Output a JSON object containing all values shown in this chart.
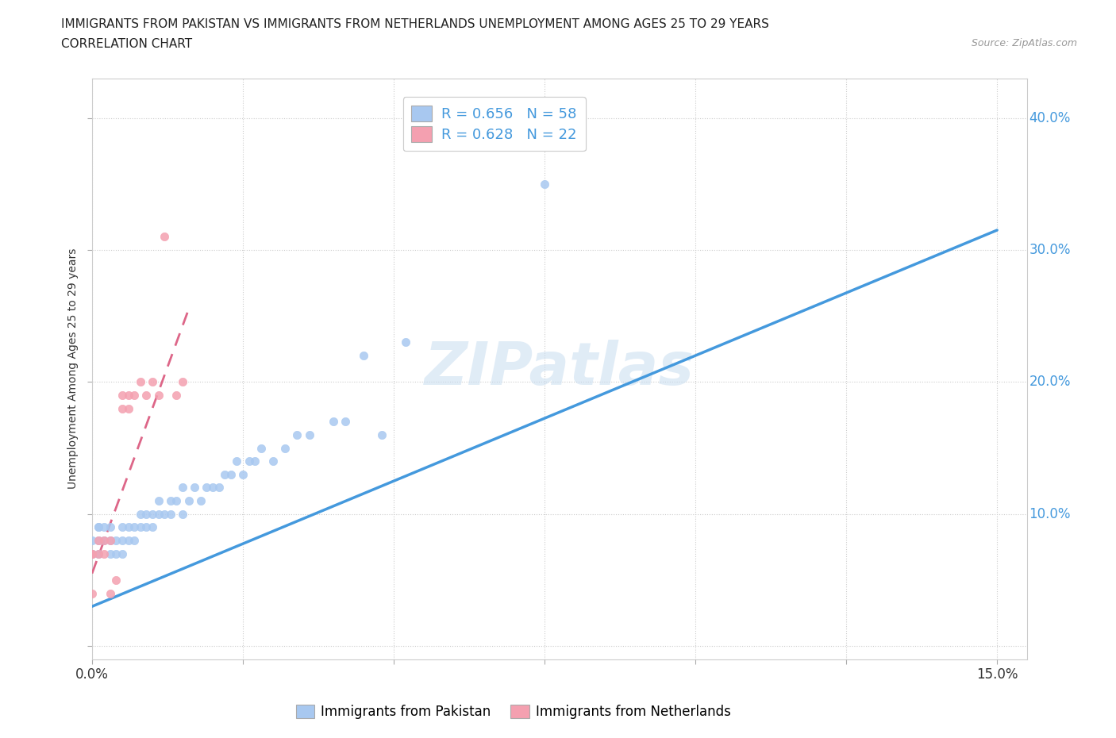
{
  "title_line1": "IMMIGRANTS FROM PAKISTAN VS IMMIGRANTS FROM NETHERLANDS UNEMPLOYMENT AMONG AGES 25 TO 29 YEARS",
  "title_line2": "CORRELATION CHART",
  "source_text": "Source: ZipAtlas.com",
  "ylabel": "Unemployment Among Ages 25 to 29 years",
  "xlim": [
    0.0,
    0.155
  ],
  "ylim": [
    -0.01,
    0.43
  ],
  "xticks": [
    0.0,
    0.025,
    0.05,
    0.075,
    0.1,
    0.125,
    0.15
  ],
  "yticks": [
    0.0,
    0.1,
    0.2,
    0.3,
    0.4
  ],
  "pakistan_color": "#a8c8f0",
  "netherlands_color": "#f4a0b0",
  "pakistan_line_color": "#4499dd",
  "netherlands_line_color": "#dd6688",
  "yaxis_label_color": "#4499dd",
  "pakistan_R": 0.656,
  "pakistan_N": 58,
  "netherlands_R": 0.628,
  "netherlands_N": 22,
  "watermark": "ZIPatlas",
  "pakistan_x": [
    0.0,
    0.0,
    0.0,
    0.001,
    0.001,
    0.001,
    0.001,
    0.002,
    0.002,
    0.003,
    0.003,
    0.003,
    0.004,
    0.004,
    0.005,
    0.005,
    0.005,
    0.006,
    0.006,
    0.007,
    0.007,
    0.008,
    0.008,
    0.009,
    0.009,
    0.01,
    0.01,
    0.011,
    0.011,
    0.012,
    0.013,
    0.013,
    0.014,
    0.015,
    0.015,
    0.016,
    0.017,
    0.018,
    0.019,
    0.02,
    0.021,
    0.022,
    0.023,
    0.024,
    0.025,
    0.026,
    0.027,
    0.028,
    0.03,
    0.032,
    0.034,
    0.036,
    0.04,
    0.042,
    0.045,
    0.048,
    0.052,
    0.075
  ],
  "pakistan_y": [
    0.07,
    0.07,
    0.08,
    0.07,
    0.08,
    0.09,
    0.09,
    0.08,
    0.09,
    0.07,
    0.08,
    0.09,
    0.07,
    0.08,
    0.07,
    0.08,
    0.09,
    0.08,
    0.09,
    0.08,
    0.09,
    0.09,
    0.1,
    0.09,
    0.1,
    0.09,
    0.1,
    0.1,
    0.11,
    0.1,
    0.1,
    0.11,
    0.11,
    0.1,
    0.12,
    0.11,
    0.12,
    0.11,
    0.12,
    0.12,
    0.12,
    0.13,
    0.13,
    0.14,
    0.13,
    0.14,
    0.14,
    0.15,
    0.14,
    0.15,
    0.16,
    0.16,
    0.17,
    0.17,
    0.22,
    0.16,
    0.23,
    0.35
  ],
  "netherlands_x": [
    0.0,
    0.0,
    0.0,
    0.001,
    0.001,
    0.002,
    0.002,
    0.003,
    0.003,
    0.004,
    0.005,
    0.005,
    0.006,
    0.006,
    0.007,
    0.008,
    0.009,
    0.01,
    0.011,
    0.012,
    0.014,
    0.015
  ],
  "netherlands_y": [
    0.07,
    0.07,
    0.04,
    0.07,
    0.08,
    0.07,
    0.08,
    0.08,
    0.04,
    0.05,
    0.18,
    0.19,
    0.19,
    0.18,
    0.19,
    0.2,
    0.19,
    0.2,
    0.19,
    0.31,
    0.19,
    0.2
  ],
  "pakistan_trend_x": [
    0.0,
    0.15
  ],
  "pakistan_trend_y": [
    0.03,
    0.315
  ],
  "netherlands_trend_x": [
    0.0,
    0.016
  ],
  "netherlands_trend_y": [
    0.055,
    0.255
  ]
}
